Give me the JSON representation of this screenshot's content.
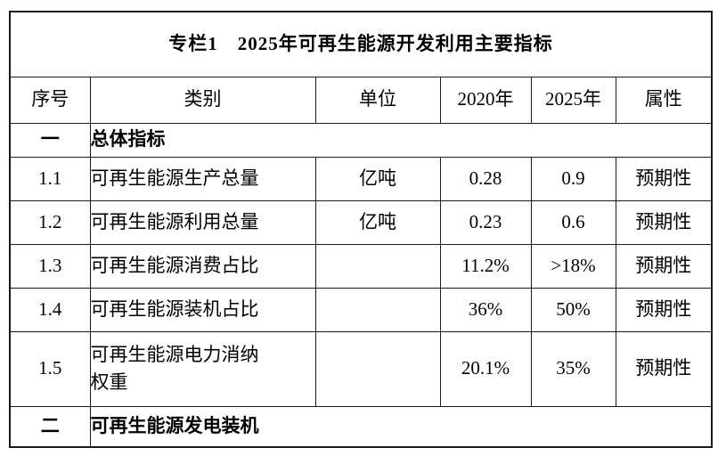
{
  "colors": {
    "border": "#1a1a1a",
    "background": "#ffffff",
    "text": "#000000"
  },
  "table": {
    "title": "专栏1　2025年可再生能源开发利用主要指标",
    "header": {
      "no": "序号",
      "category": "类别",
      "unit": "单位",
      "y2020": "2020年",
      "y2025": "2025年",
      "attr": "属性"
    },
    "rows": [
      {
        "no": "一",
        "category": "总体指标"
      },
      {
        "no": "1.1",
        "category": "可再生能源生产总量",
        "unit": "亿吨",
        "y2020": "0.28",
        "y2025": "0.9",
        "attr": "预期性"
      },
      {
        "no": "1.2",
        "category": "可再生能源利用总量",
        "unit": "亿吨",
        "y2020": "0.23",
        "y2025": "0.6",
        "attr": "预期性"
      },
      {
        "no": "1.3",
        "category": "可再生能源消费占比",
        "unit": "",
        "y2020": "11.2%",
        "y2025": ">18%",
        "attr": "预期性"
      },
      {
        "no": "1.4",
        "category": "可再生能源装机占比",
        "unit": "",
        "y2020": "36%",
        "y2025": "50%",
        "attr": "预期性"
      },
      {
        "no": "1.5",
        "category": "可再生能源电力消纳权重",
        "unit": "",
        "y2020": "20.1%",
        "y2025": "35%",
        "attr": "预期性"
      },
      {
        "no": "二",
        "category": "可再生能源发电装机"
      }
    ]
  }
}
